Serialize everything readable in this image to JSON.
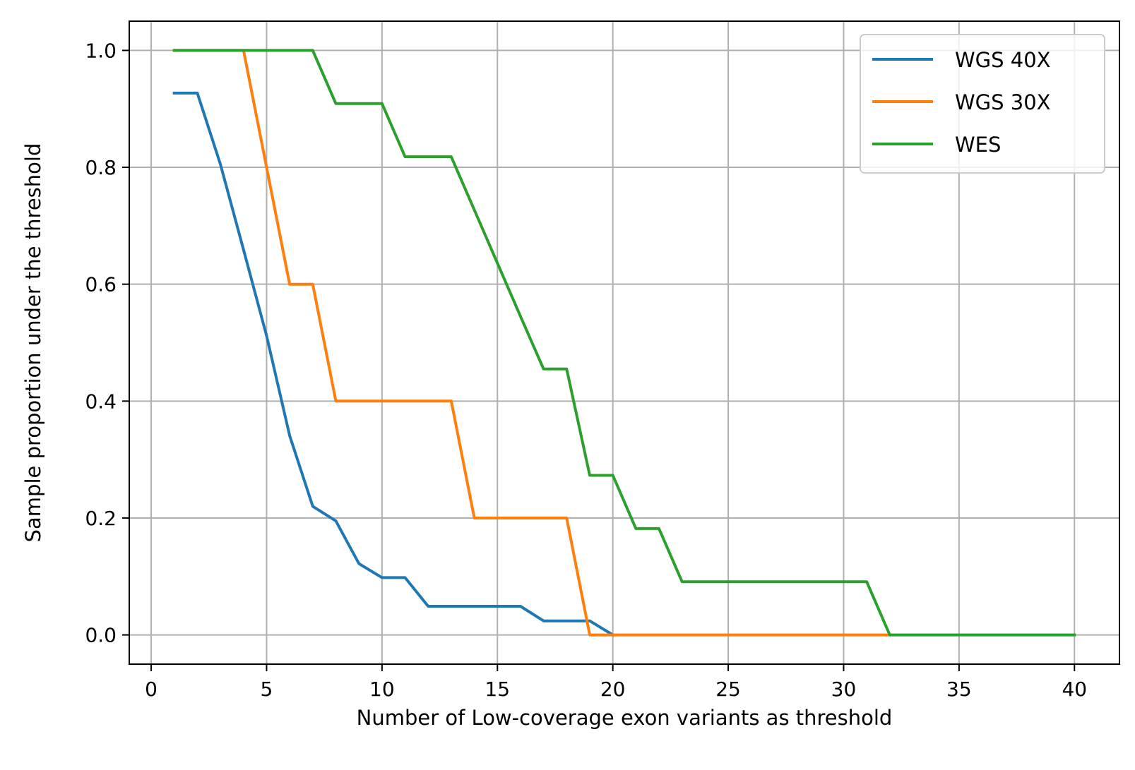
{
  "chart_data": {
    "type": "line",
    "title": "",
    "xlabel": "Number of Low-coverage exon variants as threshold",
    "ylabel": "Sample proportion under the threshold",
    "xlim": [
      -0.95,
      41.95
    ],
    "ylim": [
      -0.05,
      1.05
    ],
    "xticks": [
      0,
      5,
      10,
      15,
      20,
      25,
      30,
      35,
      40
    ],
    "xtick_labels": [
      "0",
      "5",
      "10",
      "15",
      "20",
      "25",
      "30",
      "35",
      "40"
    ],
    "yticks": [
      0.0,
      0.2,
      0.4,
      0.6,
      0.8,
      1.0
    ],
    "ytick_labels": [
      "0.0",
      "0.2",
      "0.4",
      "0.6",
      "0.8",
      "1.0"
    ],
    "grid": true,
    "legend_position": "top-right",
    "series": [
      {
        "name": "WGS 40X",
        "color": "#1f77b4",
        "x": [
          1,
          2,
          3,
          4,
          5,
          6,
          7,
          8,
          9,
          10,
          11,
          12,
          13,
          14,
          15,
          16,
          17,
          18,
          19,
          20
        ],
        "y": [
          0.927,
          0.927,
          0.805,
          0.659,
          0.512,
          0.341,
          0.22,
          0.195,
          0.122,
          0.098,
          0.098,
          0.049,
          0.049,
          0.049,
          0.049,
          0.049,
          0.024,
          0.024,
          0.024,
          0.0
        ]
      },
      {
        "name": "WGS 30X",
        "color": "#ff7f0e",
        "x": [
          1,
          2,
          3,
          4,
          5,
          6,
          7,
          8,
          9,
          10,
          11,
          12,
          13,
          14,
          15,
          16,
          17,
          18,
          19,
          20,
          21,
          22,
          23,
          24,
          25,
          26,
          27,
          28,
          29,
          30,
          31,
          32
        ],
        "y": [
          1.0,
          1.0,
          1.0,
          1.0,
          0.8,
          0.6,
          0.6,
          0.4,
          0.4,
          0.4,
          0.4,
          0.4,
          0.4,
          0.2,
          0.2,
          0.2,
          0.2,
          0.2,
          0.0,
          0.0,
          0.0,
          0.0,
          0.0,
          0.0,
          0.0,
          0.0,
          0.0,
          0.0,
          0.0,
          0.0,
          0.0,
          0.0
        ]
      },
      {
        "name": "WES",
        "color": "#2ca02c",
        "x": [
          1,
          2,
          3,
          4,
          5,
          6,
          7,
          8,
          9,
          10,
          11,
          12,
          13,
          14,
          15,
          16,
          17,
          18,
          19,
          20,
          21,
          22,
          23,
          24,
          25,
          26,
          27,
          28,
          29,
          30,
          31,
          32,
          33,
          34,
          35,
          36,
          37,
          38,
          39,
          40
        ],
        "y": [
          1.0,
          1.0,
          1.0,
          1.0,
          1.0,
          1.0,
          1.0,
          0.909,
          0.909,
          0.909,
          0.818,
          0.818,
          0.818,
          0.727,
          0.636,
          0.545,
          0.455,
          0.455,
          0.273,
          0.273,
          0.182,
          0.182,
          0.091,
          0.091,
          0.091,
          0.091,
          0.091,
          0.091,
          0.091,
          0.091,
          0.091,
          0.0,
          0.0,
          0.0,
          0.0,
          0.0,
          0.0,
          0.0,
          0.0,
          0.0
        ]
      }
    ]
  }
}
